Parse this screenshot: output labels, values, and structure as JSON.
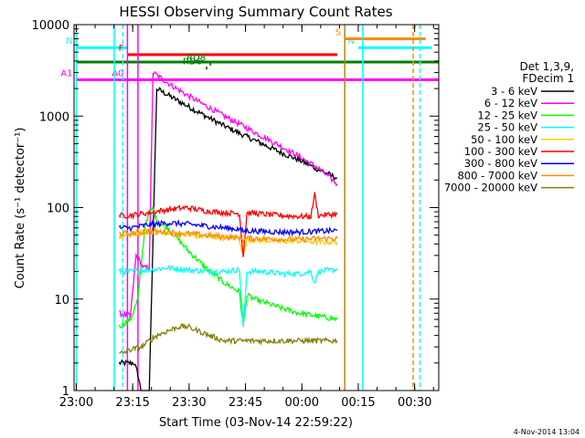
{
  "chart_data": {
    "type": "line",
    "title": "HESSI Observing Summary Count Rates",
    "xlabel": "Start Time (03-Nov-14 22:59:22)",
    "ylabel": "Count Rate (s⁻¹ detector⁻¹)",
    "timestamp": "4-Nov-2014 13:04",
    "y_scale": "log",
    "xlim": [
      0,
      97
    ],
    "ylim": [
      1,
      10000
    ],
    "x_ticks": [
      {
        "t": 0.6,
        "label": "23:00"
      },
      {
        "t": 15.6,
        "label": "23:15"
      },
      {
        "t": 30.6,
        "label": "23:30"
      },
      {
        "t": 45.6,
        "label": "23:45"
      },
      {
        "t": 60.6,
        "label": "00:00"
      },
      {
        "t": 75.6,
        "label": "00:15"
      },
      {
        "t": 90.6,
        "label": "00:30"
      }
    ],
    "y_ticks": [
      {
        "v": 1,
        "label": "1"
      },
      {
        "v": 10,
        "label": "10"
      },
      {
        "v": 100,
        "label": "100"
      },
      {
        "v": 1000,
        "label": "1000"
      },
      {
        "v": 10000,
        "label": "10000"
      }
    ],
    "legend": {
      "header": [
        "Det 1,3,9,",
        "FDecim 1"
      ],
      "position": "right"
    },
    "series": [
      {
        "name": "3 - 6 keV",
        "color": "#000000",
        "x": [
          12,
          16,
          17,
          17.8,
          19,
          20,
          22,
          25,
          30,
          35,
          40,
          45,
          50,
          55,
          60,
          65,
          70
        ],
        "y": [
          2,
          2,
          1.5,
          1,
          1,
          1,
          2000,
          1700,
          1300,
          1000,
          780,
          620,
          500,
          400,
          330,
          260,
          210
        ]
      },
      {
        "name": "6 - 12 keV",
        "color": "#ff00ff",
        "x": [
          12,
          15,
          16.5,
          18.5,
          20,
          21,
          22,
          25,
          30,
          35,
          40,
          45,
          50,
          55,
          60,
          65,
          70
        ],
        "y": [
          7,
          6.5,
          30,
          22,
          22,
          3000,
          2800,
          2300,
          1700,
          1300,
          1000,
          780,
          600,
          470,
          360,
          270,
          180
        ]
      },
      {
        "name": "12 - 25 keV",
        "color": "#00ff00",
        "x": [
          12,
          15,
          17,
          19,
          20,
          21,
          22,
          25,
          30,
          35,
          40,
          44,
          45,
          46,
          48,
          55,
          60,
          65,
          70
        ],
        "y": [
          5,
          6,
          10,
          70,
          85,
          100,
          70,
          60,
          35,
          22,
          15,
          12,
          5,
          11,
          10,
          8,
          7,
          6.5,
          6
        ]
      },
      {
        "name": "25 - 50 keV",
        "color": "#00ffff",
        "x": [
          12,
          15,
          20,
          25,
          30,
          35,
          40,
          44,
          45,
          46,
          50,
          55,
          60,
          63,
          64,
          65,
          70
        ],
        "y": [
          20,
          20,
          21,
          22,
          21,
          20,
          20,
          21,
          5,
          20,
          20,
          19,
          19,
          20,
          15,
          20,
          21
        ]
      },
      {
        "name": "50 - 100 keV",
        "color": "#ffcc00",
        "x": [
          12,
          15,
          20,
          25,
          30,
          35,
          40,
          44,
          45,
          46,
          50,
          55,
          60,
          65,
          70
        ],
        "y": [
          48,
          50,
          55,
          52,
          50,
          48,
          47,
          46,
          30,
          45,
          44,
          43,
          43,
          42,
          42
        ]
      },
      {
        "name": "100 - 300 keV",
        "color": "#ff0000",
        "x": [
          12,
          15,
          20,
          25,
          30,
          35,
          40,
          44,
          45,
          46,
          50,
          55,
          60,
          63,
          64,
          65,
          70
        ],
        "y": [
          82,
          82,
          88,
          95,
          100,
          92,
          88,
          86,
          30,
          88,
          85,
          82,
          80,
          80,
          140,
          82,
          85
        ]
      },
      {
        "name": "300 - 800 keV",
        "color": "#0000ff",
        "x": [
          12,
          15,
          20,
          25,
          30,
          35,
          40,
          44,
          45,
          46,
          50,
          55,
          60,
          65,
          70
        ],
        "y": [
          60,
          60,
          65,
          68,
          66,
          63,
          60,
          58,
          55,
          56,
          55,
          54,
          54,
          55,
          56
        ]
      },
      {
        "name": "800 - 7000 keV",
        "color": "#ff8c00",
        "x": [
          12,
          15,
          20,
          25,
          30,
          35,
          40,
          44,
          45,
          46,
          50,
          55,
          60,
          65,
          70
        ],
        "y": [
          52,
          52,
          55,
          54,
          52,
          50,
          48,
          47,
          45,
          46,
          46,
          45,
          45,
          46,
          46
        ]
      },
      {
        "name": "7000 - 20000 keV",
        "color": "#808000",
        "x": [
          12,
          15,
          18,
          20,
          22,
          25,
          28,
          30,
          33,
          36,
          40,
          45,
          50,
          55,
          60,
          65,
          70
        ],
        "y": [
          2.5,
          2.8,
          3,
          3.5,
          4,
          4.5,
          5,
          5,
          4.5,
          4,
          3.5,
          3.5,
          3.5,
          3.5,
          3.5,
          3.5,
          3.5
        ]
      }
    ],
    "flag_bars": [
      {
        "label": "N",
        "color": "#00ffff",
        "y": 5600,
        "x_start": 0.6,
        "x_end": 14.2
      },
      {
        "label": "N",
        "color": "#00ffff",
        "y": 5600,
        "x_start": 75.6,
        "x_end": 95
      },
      {
        "label": "F",
        "color": "#ff0000",
        "y": 4700,
        "x_start": 14.2,
        "x_end": 70
      },
      {
        "label": "S",
        "color": "#ff8c00",
        "y": 7000,
        "x_start": 72,
        "x_end": 93.5
      },
      {
        "label": "",
        "color": "#008000",
        "y": 3900,
        "x_start": 0.6,
        "x_end": 97
      },
      {
        "label": "A1",
        "color": "#ff00ff",
        "y": 2500,
        "x_start": 0.6,
        "x_end": 14.2
      },
      {
        "label": "A0",
        "color": "#ff00ff",
        "y": 2500,
        "x_start": 14.2,
        "x_end": 97
      },
      {
        "label": "RD6",
        "color": "#008000",
        "y": 3350,
        "x_start": 35,
        "x_end": 35.5
      },
      {
        "label": "RD8",
        "color": "#008000",
        "y": 3700,
        "x_start": 36,
        "x_end": 36.5
      }
    ],
    "vertical_markers": [
      {
        "t": 0.6,
        "color": "#00ffff",
        "style": "solid"
      },
      {
        "t": 10.7,
        "color": "#00ffff",
        "style": "solid"
      },
      {
        "t": 13.0,
        "color": "#00ffff",
        "style": "dashed"
      },
      {
        "t": 14.2,
        "color": "#ff00ff",
        "style": "solid"
      },
      {
        "t": 17.0,
        "color": "#ff00ff",
        "style": "solid"
      },
      {
        "t": 72.0,
        "color": "#b8860b",
        "style": "solid"
      },
      {
        "t": 76.8,
        "color": "#00ffff",
        "style": "solid"
      },
      {
        "t": 90.2,
        "color": "#ff8c00",
        "style": "dashed"
      },
      {
        "t": 92.0,
        "color": "#00ffff",
        "style": "dashed"
      }
    ]
  }
}
